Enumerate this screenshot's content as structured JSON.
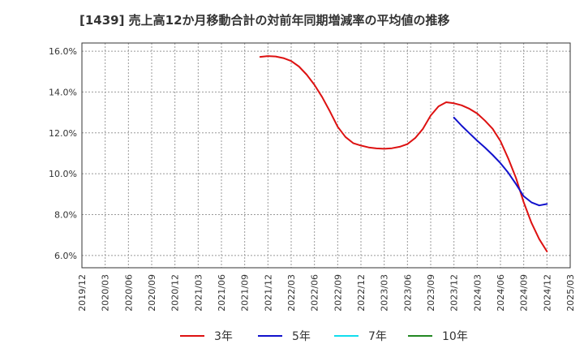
{
  "title": "[1439]  売上高12か月移動合計の対前年同期増減率の平均値の推移",
  "chart_data": {
    "type": "line",
    "title": "[1439]  売上高12か月移動合計の対前年同期増減率の平均値の推移",
    "xlabel": "",
    "ylabel": "",
    "y_unit": "%",
    "ylim": [
      5.4,
      16.4
    ],
    "y_ticks": [
      6.0,
      8.0,
      10.0,
      12.0,
      14.0,
      16.0
    ],
    "y_tick_labels": [
      "6.0%",
      "8.0%",
      "10.0%",
      "12.0%",
      "14.0%",
      "16.0%"
    ],
    "x_ticks": [
      "2019/12",
      "2020/03",
      "2020/06",
      "2020/09",
      "2020/12",
      "2021/03",
      "2021/06",
      "2021/09",
      "2021/12",
      "2022/03",
      "2022/06",
      "2022/09",
      "2022/12",
      "2023/03",
      "2023/06",
      "2023/09",
      "2023/12",
      "2024/03",
      "2024/06",
      "2024/09",
      "2024/12",
      "2025/03"
    ],
    "grid": true,
    "legend_position": "bottom",
    "series": [
      {
        "name": "3年",
        "color": "#dd1111",
        "x": [
          "2021/11",
          "2021/12",
          "2022/01",
          "2022/02",
          "2022/03",
          "2022/04",
          "2022/05",
          "2022/06",
          "2022/07",
          "2022/08",
          "2022/09",
          "2022/10",
          "2022/11",
          "2022/12",
          "2023/01",
          "2023/02",
          "2023/03",
          "2023/04",
          "2023/05",
          "2023/06",
          "2023/07",
          "2023/08",
          "2023/09",
          "2023/10",
          "2023/11",
          "2023/12",
          "2024/01",
          "2024/02",
          "2024/03",
          "2024/04",
          "2024/05",
          "2024/06",
          "2024/07",
          "2024/08",
          "2024/09",
          "2024/10",
          "2024/11",
          "2024/12"
        ],
        "values": [
          15.72,
          15.76,
          15.74,
          15.66,
          15.52,
          15.25,
          14.85,
          14.35,
          13.75,
          13.05,
          12.3,
          11.8,
          11.5,
          11.38,
          11.29,
          11.24,
          11.22,
          11.25,
          11.32,
          11.45,
          11.75,
          12.2,
          12.85,
          13.3,
          13.5,
          13.45,
          13.35,
          13.18,
          12.95,
          12.6,
          12.2,
          11.6,
          10.75,
          9.8,
          8.6,
          7.6,
          6.8,
          6.2
        ]
      },
      {
        "name": "5年",
        "color": "#1111cc",
        "x": [
          "2023/12",
          "2024/01",
          "2024/02",
          "2024/03",
          "2024/04",
          "2024/05",
          "2024/06",
          "2024/07",
          "2024/08",
          "2024/09",
          "2024/10",
          "2024/11",
          "2024/12"
        ],
        "values": [
          12.75,
          12.35,
          11.98,
          11.62,
          11.28,
          10.92,
          10.52,
          10.05,
          9.5,
          8.9,
          8.6,
          8.45,
          8.52
        ]
      },
      {
        "name": "7年",
        "color": "#11ddee",
        "x": [],
        "values": []
      },
      {
        "name": "10年",
        "color": "#228822",
        "x": [],
        "values": []
      }
    ]
  }
}
